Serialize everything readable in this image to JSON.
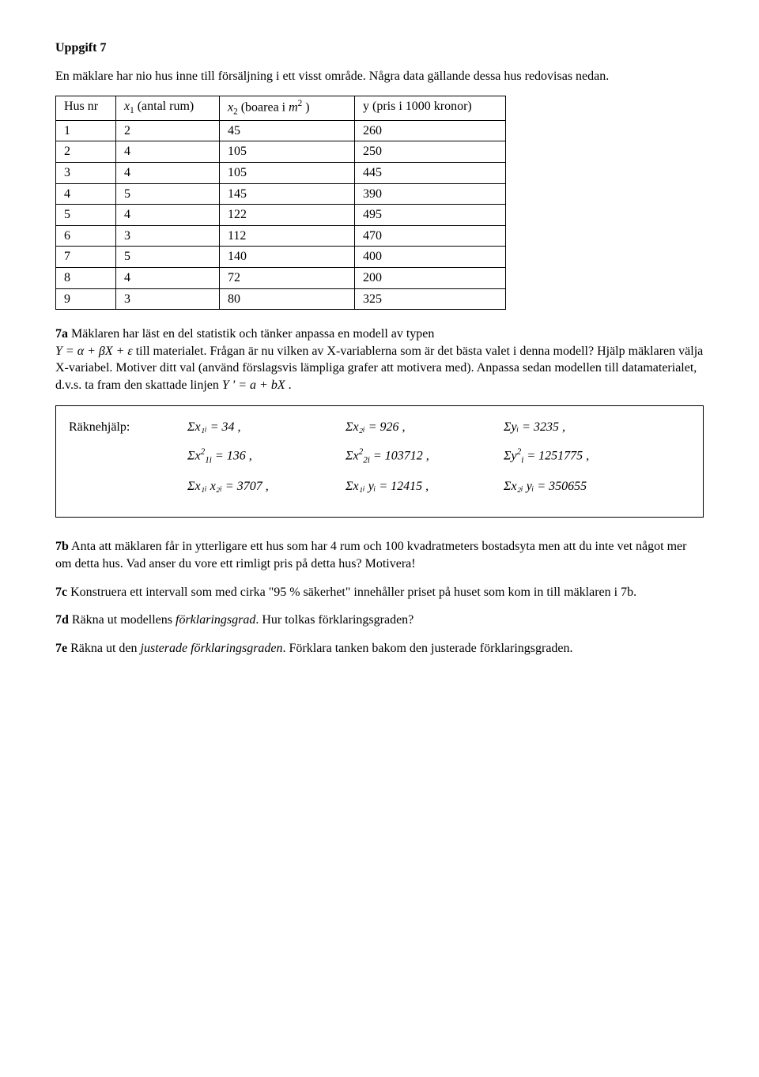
{
  "heading": "Uppgift 7",
  "intro": "En mäklare har nio hus inne till försäljning i ett visst område. Några data gällande dessa hus redovisas nedan.",
  "table": {
    "headers": {
      "nr": "Hus nr",
      "x1_pre": "x",
      "x1_sub": "1",
      "x1_post": " (antal rum)",
      "x2_pre": "x",
      "x2_sub": "2",
      "x2_mid": " (boarea i ",
      "x2_m": "m",
      "x2_sup": "2",
      "x2_post": " )",
      "y": "y (pris i 1000 kronor)"
    },
    "rows": [
      [
        "1",
        "2",
        "45",
        "260"
      ],
      [
        "2",
        "4",
        "105",
        "250"
      ],
      [
        "3",
        "4",
        "105",
        "445"
      ],
      [
        "4",
        "5",
        "145",
        "390"
      ],
      [
        "5",
        "4",
        "122",
        "495"
      ],
      [
        "6",
        "3",
        "112",
        "470"
      ],
      [
        "7",
        "5",
        "140",
        "400"
      ],
      [
        "8",
        "4",
        "72",
        "200"
      ],
      [
        "9",
        "3",
        "80",
        "325"
      ]
    ]
  },
  "q7a": {
    "label": "7a",
    "t1": " Mäklaren har läst en del statistik och tänker anpassa en modell av typen ",
    "eq": "Y = α + βX + ε",
    "t2": " till materialet. Frågan är nu vilken av X-variablerna som är det bästa valet i denna modell? Hjälp mäklaren välja X-variabel. Motiver ditt val (använd förslagsvis lämpliga grafer att motivera med). Anpassa sedan modellen till datamaterialet, d.v.s. ta fram den skattade linjen ",
    "eq2_pre": "Y ' = a + bX",
    "t3": " ."
  },
  "hints": {
    "label": "Räknehjälp:",
    "r1": {
      "a": "Σx₁ᵢ = 34 ,",
      "b": "Σx₂ᵢ = 926 ,",
      "c": "Σyᵢ = 3235 ,"
    },
    "r2": {
      "a_pre": "Σx",
      "a_sup": "2",
      "a_sub": "1i",
      "a_post": " = 136 ,",
      "b_pre": "Σx",
      "b_sup": "2",
      "b_sub": "2i",
      "b_post": " = 103712 ,",
      "c_pre": "Σy",
      "c_sup": "2",
      "c_sub": "i",
      "c_post": " = 1251775 ,"
    },
    "r3": {
      "a": "Σx₁ᵢ x₂ᵢ = 3707 ,",
      "b": "Σx₁ᵢ yᵢ = 12415 ,",
      "c": "Σx₂ᵢ yᵢ = 350655"
    }
  },
  "q7b": {
    "label": "7b",
    "text": " Anta att mäklaren får in ytterligare ett hus som har 4 rum och 100 kvadratmeters bostadsyta men att du inte vet något mer om detta hus. Vad anser du vore ett rimligt pris på detta hus? Motivera!"
  },
  "q7c": {
    "label": "7c",
    "text": " Konstruera ett intervall som med cirka \"95 % säkerhet\" innehåller priset på huset som kom in till mäklaren i 7b."
  },
  "q7d": {
    "label": "7d",
    "t1": " Räkna ut modellens ",
    "em": "förklaringsgrad",
    "t2": ". Hur tolkas förklaringsgraden?"
  },
  "q7e": {
    "label": "7e",
    "t1": " Räkna ut den ",
    "em": "justerade förklaringsgraden",
    "t2": ". Förklara tanken bakom den justerade förklaringsgraden."
  }
}
